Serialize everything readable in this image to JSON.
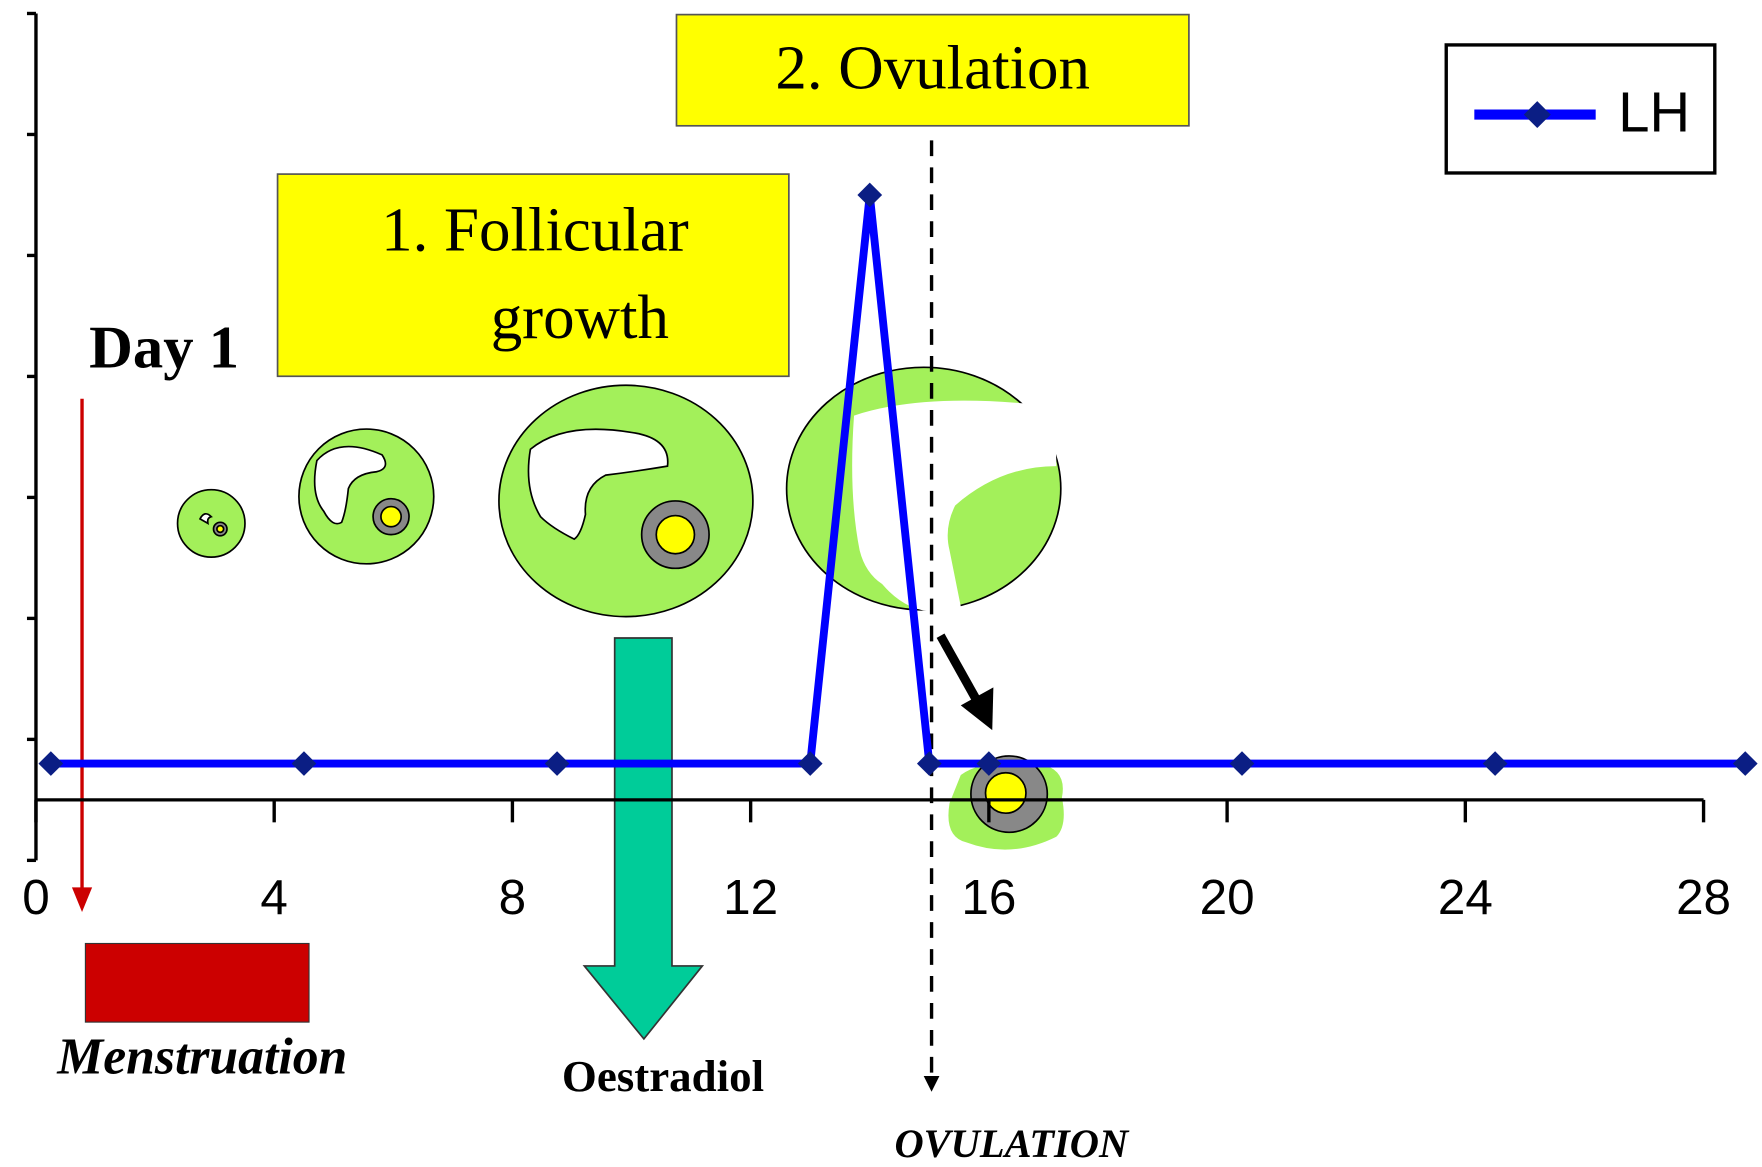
{
  "chart_data": {
    "type": "line",
    "x": [
      0.25,
      4.5,
      8.75,
      13,
      14,
      15,
      16,
      20.25,
      24.5,
      28.7
    ],
    "series": [
      {
        "name": "LH",
        "color": "#0000ff",
        "marker_color": "#0b1e84",
        "values": [
          0.8,
          0.8,
          0.8,
          0.8,
          5.5,
          0.8,
          0.8,
          0.8,
          0.8,
          0.8
        ]
      }
    ],
    "xlim": [
      0,
      28
    ],
    "xticks": [
      0,
      4,
      8,
      12,
      16,
      20,
      24,
      28
    ],
    "ylim": [
      0,
      7
    ],
    "yticks": [
      0,
      1,
      2,
      3,
      4,
      5,
      6,
      7
    ],
    "xaxis_crossing": 0.5,
    "legend": "top-right",
    "annotations": {
      "day1": "Day 1",
      "phase1": [
        "1. Follicular",
        "growth"
      ],
      "phase2": "2.  Ovulation",
      "menstruation": "Menstruation",
      "oestradiol": "Oestradiol",
      "ovulation": "OVULATION"
    }
  }
}
